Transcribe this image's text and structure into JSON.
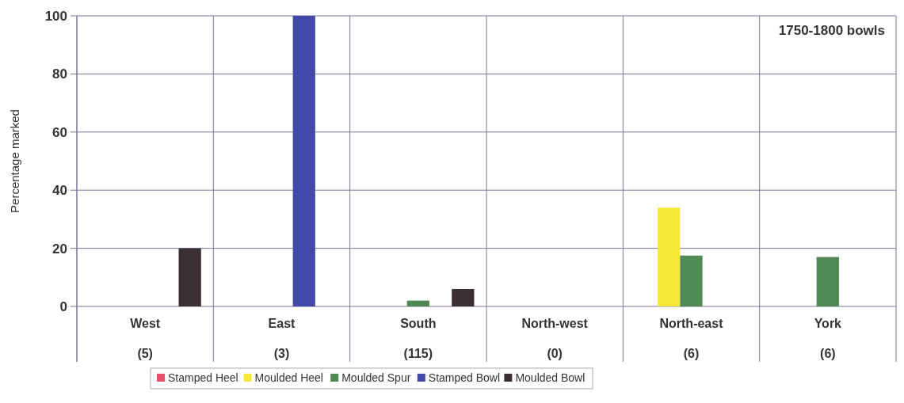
{
  "chart_data": {
    "type": "bar",
    "title": "1750-1800 bowls",
    "ylabel": "Percentage marked",
    "categories": [
      "West\n(5)",
      "East\n(3)",
      "South\n(115)",
      "North-west\n(0)",
      "North-east\n(6)",
      "York\n(6)"
    ],
    "series": [
      {
        "name": "Stamped Heel",
        "color": "#e8506e",
        "values": [
          0,
          0,
          0,
          0,
          0,
          0
        ]
      },
      {
        "name": "Moulded Heel",
        "color": "#f5e83a",
        "values": [
          0,
          0,
          0,
          0,
          34,
          0
        ]
      },
      {
        "name": "Moulded Spur",
        "color": "#4f8a55",
        "values": [
          0,
          0,
          2,
          0,
          17.5,
          17
        ]
      },
      {
        "name": "Stamped Bowl",
        "color": "#4349a8",
        "values": [
          0,
          100,
          0,
          0,
          0,
          0
        ]
      },
      {
        "name": "Moulded Bowl",
        "color": "#3a2f33",
        "values": [
          20,
          0,
          6,
          0,
          0,
          0
        ]
      }
    ],
    "ylim": [
      0,
      100
    ],
    "yticks": [
      0,
      20,
      40,
      60,
      80,
      100
    ],
    "grid": true,
    "legend": "bottom"
  }
}
